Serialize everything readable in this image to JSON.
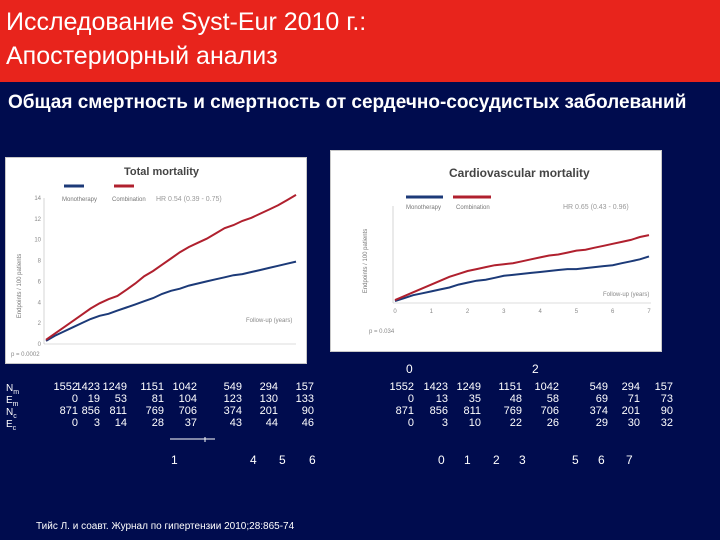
{
  "slide": {
    "title_line1": "Исследование Syst-Eur 2010 г.:",
    "title_line2": "Апостериорный анализ",
    "subtitle": "Общая смертность и смертность от сердечно-сосудистых заболеваний",
    "citation": "Тийс Л. и соавт. Журнал по гипертензии 2010;28:865-74"
  },
  "colors": {
    "monotherapy": "#1c3a78",
    "combination": "#b0202e",
    "title_bar": "#e8241c",
    "background": "#000c4e"
  },
  "chart_data": [
    {
      "type": "line",
      "title": "Total mortality",
      "ylabel": "Endpoints / 100 patients",
      "xlabel": "Follow-up (years)",
      "yticks": [
        "0",
        "2",
        "4",
        "6",
        "8",
        "10",
        "12",
        "14"
      ],
      "ylim": [
        0,
        14
      ],
      "xlim": [
        0,
        7
      ],
      "hr": "HR 0.54 (0.39 - 0.75)",
      "p_value": "p = 0.0002",
      "legend": [
        "Monotherapy",
        "Combination"
      ],
      "series": [
        {
          "name": "Monotherapy",
          "x": [
            0,
            0.25,
            0.5,
            0.75,
            1,
            1.25,
            1.5,
            1.75,
            2,
            2.25,
            2.5,
            2.75,
            3,
            3.25,
            3.5,
            3.75,
            4,
            4.25,
            4.5,
            4.75,
            5,
            5.25,
            5.5,
            5.75,
            6,
            6.25,
            6.5,
            6.75,
            7
          ],
          "y": [
            0.3,
            0.8,
            1.2,
            1.6,
            2,
            2.4,
            2.7,
            2.9,
            3.2,
            3.5,
            3.8,
            4.1,
            4.4,
            4.8,
            5.1,
            5.3,
            5.6,
            5.8,
            6,
            6.2,
            6.4,
            6.6,
            6.7,
            6.9,
            7.1,
            7.3,
            7.5,
            7.7,
            7.9
          ]
        },
        {
          "name": "Combination",
          "x": [
            0,
            0.25,
            0.5,
            0.75,
            1,
            1.25,
            1.5,
            1.75,
            2,
            2.25,
            2.5,
            2.75,
            3,
            3.25,
            3.5,
            3.75,
            4,
            4.25,
            4.5,
            4.75,
            5,
            5.25,
            5.5,
            5.75,
            6,
            6.25,
            6.5,
            6.75,
            7
          ],
          "y": [
            0.4,
            1,
            1.6,
            2.2,
            2.8,
            3.4,
            3.9,
            4.3,
            4.6,
            5.2,
            5.8,
            6.5,
            7,
            7.6,
            8.2,
            8.8,
            9.3,
            9.7,
            10.1,
            10.6,
            11.1,
            11.4,
            11.8,
            12.1,
            12.5,
            12.9,
            13.3,
            13.8,
            14.3
          ]
        }
      ]
    },
    {
      "type": "line",
      "title": "Cardiovascular mortality",
      "ylabel": "Endpoints / 100 patients",
      "xlabel": "Follow-up (years)",
      "xticks": [
        "0",
        "1",
        "2",
        "3",
        "4",
        "5",
        "6",
        "7"
      ],
      "xlim": [
        0,
        7
      ],
      "ylim": [
        0,
        10
      ],
      "hr": "HR 0.65 (0.43 - 0.96)",
      "p_value": "p = 0.034",
      "legend": [
        "Monotherapy",
        "Combination"
      ],
      "series": [
        {
          "name": "Monotherapy",
          "x": [
            0,
            0.25,
            0.5,
            0.75,
            1,
            1.25,
            1.5,
            1.75,
            2,
            2.25,
            2.5,
            2.75,
            3,
            3.25,
            3.5,
            3.75,
            4,
            4.25,
            4.5,
            4.75,
            5,
            5.25,
            5.5,
            5.75,
            6,
            6.25,
            6.5,
            6.75,
            7
          ],
          "y": [
            0.2,
            0.5,
            0.8,
            1,
            1.2,
            1.4,
            1.6,
            1.9,
            2.1,
            2.3,
            2.4,
            2.6,
            2.8,
            2.9,
            3,
            3.1,
            3.2,
            3.3,
            3.4,
            3.5,
            3.5,
            3.6,
            3.7,
            3.8,
            3.9,
            4.1,
            4.3,
            4.5,
            4.8
          ]
        },
        {
          "name": "Combination",
          "x": [
            0,
            0.25,
            0.5,
            0.75,
            1,
            1.25,
            1.5,
            1.75,
            2,
            2.25,
            2.5,
            2.75,
            3,
            3.25,
            3.5,
            3.75,
            4,
            4.25,
            4.5,
            4.75,
            5,
            5.25,
            5.5,
            5.75,
            6,
            6.25,
            6.5,
            6.75,
            7
          ],
          "y": [
            0.3,
            0.7,
            1.1,
            1.5,
            1.9,
            2.3,
            2.7,
            3,
            3.3,
            3.5,
            3.7,
            3.9,
            4,
            4.1,
            4.3,
            4.5,
            4.7,
            4.9,
            5,
            5.2,
            5.4,
            5.5,
            5.7,
            5.9,
            6.1,
            6.3,
            6.5,
            6.8,
            7
          ]
        }
      ]
    }
  ],
  "table": {
    "row_labels": [
      "Nm",
      "Em",
      "Nc",
      "Ec"
    ],
    "left_columns": [
      [
        "1552",
        "0",
        "871",
        "0"
      ],
      [
        "1423",
        "19",
        "856",
        "3"
      ],
      [
        "1249",
        "53",
        "811",
        "14"
      ],
      [
        "1151",
        "81",
        "769",
        "28"
      ],
      [
        "1042",
        "104",
        "706",
        "37"
      ],
      [
        "549",
        "123",
        "374",
        "43"
      ],
      [
        "294",
        "130",
        "201",
        "44"
      ],
      [
        "157",
        "133",
        "90",
        "46"
      ]
    ],
    "right_columns": [
      [
        "1552",
        "0",
        "871",
        "0"
      ],
      [
        "1423",
        "13",
        "856",
        "3"
      ],
      [
        "1249",
        "35",
        "811",
        "10"
      ],
      [
        "1151",
        "48",
        "769",
        "22"
      ],
      [
        "1042",
        "58",
        "706",
        "26"
      ],
      [
        "549",
        "69",
        "374",
        "29"
      ],
      [
        "294",
        "71",
        "201",
        "30"
      ],
      [
        "157",
        "73",
        "90",
        "32"
      ]
    ]
  },
  "axis_numbers": {
    "left_bottom": [
      "1",
      "4",
      "5",
      "6"
    ],
    "right_bottom": [
      "0",
      "1",
      "2",
      "3",
      "5",
      "6",
      "7"
    ],
    "right_top": [
      "0",
      "2"
    ]
  }
}
